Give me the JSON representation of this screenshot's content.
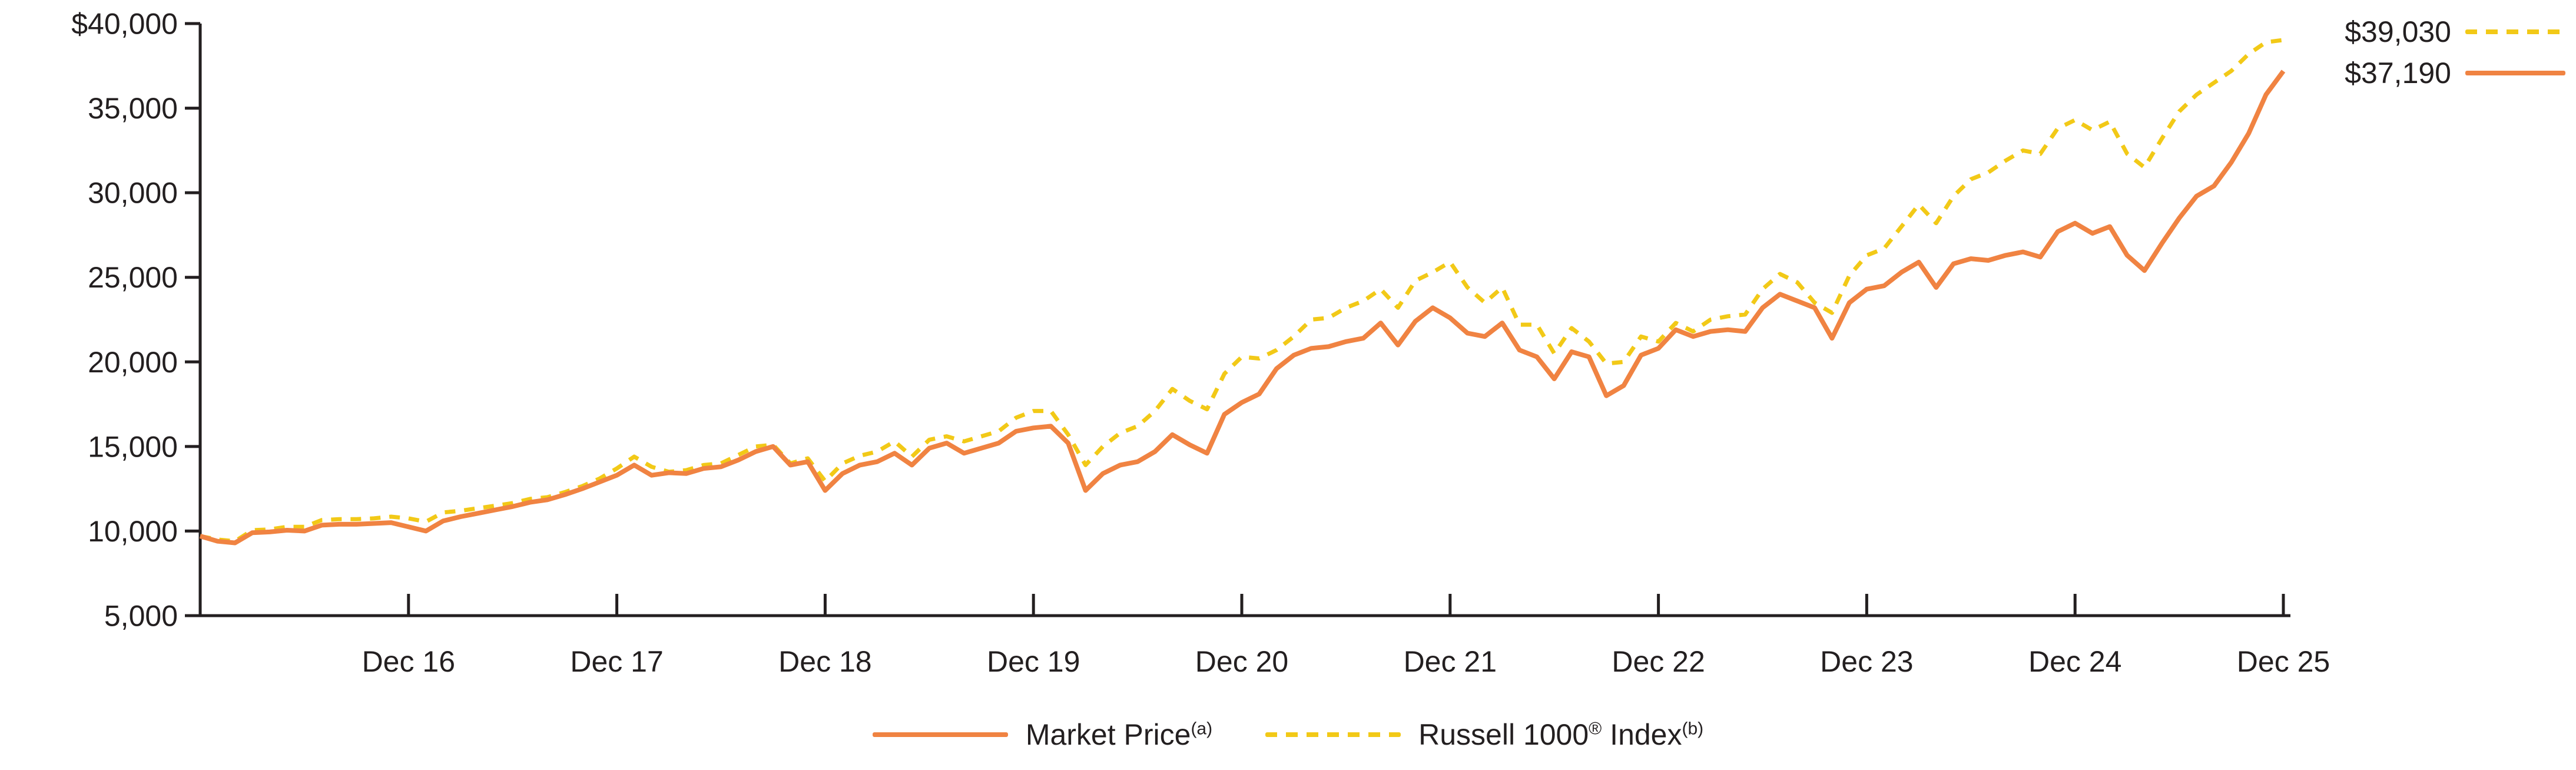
{
  "chart": {
    "y_axis": {
      "tick_labels": [
        "$40,000",
        "35,000",
        "30,000",
        "25,000",
        "20,000",
        "15,000",
        "10,000",
        "5,000"
      ],
      "tick_values": [
        40000,
        35000,
        30000,
        25000,
        20000,
        15000,
        10000,
        5000
      ]
    },
    "x_axis": {
      "tick_labels": [
        "Dec 16",
        "Dec 17",
        "Dec 18",
        "Dec 19",
        "Dec 20",
        "Dec 21",
        "Dec 22",
        "Dec 23",
        "Dec 24",
        "Dec 25"
      ]
    },
    "end_labels": [
      {
        "value": "$39,030",
        "series": "Russell 1000 Index"
      },
      {
        "value": "$37,190",
        "series": "Market Price"
      }
    ],
    "legend": {
      "items": [
        {
          "label": "Market Price",
          "sup": "(a)",
          "style": "solid",
          "color": "#F08342"
        },
        {
          "label": "Russell 1000",
          "sup_reg": "®",
          "label2": " Index",
          "sup": "(b)",
          "style": "dashed",
          "color": "#F2C917"
        }
      ]
    },
    "colors": {
      "market_price": "#F08342",
      "russell_index": "#F2C917",
      "axis": "#231f20"
    }
  },
  "chart_data": {
    "type": "line",
    "title": "",
    "xlabel": "",
    "ylabel": "",
    "ylim": [
      5000,
      40000
    ],
    "grid": false,
    "legend_position": "bottom-center",
    "x_tick_labels": [
      "Dec 16",
      "Dec 17",
      "Dec 18",
      "Dec 19",
      "Dec 20",
      "Dec 21",
      "Dec 22",
      "Dec 23",
      "Dec 24",
      "Dec 25"
    ],
    "x_note": "monthly points, estimated, from Dec 2015 (unlabeled start at axis) through Dec 2025; ticks fall every 12th point",
    "series": [
      {
        "name": "Market Price (a)",
        "color": "#F08342",
        "line_style": "solid",
        "final_value_label": "$37,190",
        "values": [
          9700,
          9400,
          9300,
          9900,
          9950,
          10050,
          10000,
          10350,
          10400,
          10400,
          10450,
          10500,
          10250,
          10000,
          10600,
          10850,
          11050,
          11250,
          11450,
          11700,
          11850,
          12150,
          12500,
          12900,
          13300,
          13900,
          13300,
          13450,
          13400,
          13700,
          13800,
          14200,
          14700,
          15000,
          13900,
          14100,
          12400,
          13400,
          13900,
          14100,
          14600,
          13900,
          14900,
          15200,
          14600,
          14900,
          15200,
          15900,
          16100,
          16200,
          15200,
          12400,
          13400,
          13900,
          14100,
          14700,
          15700,
          15100,
          14600,
          16900,
          17600,
          18100,
          19600,
          20400,
          20800,
          20900,
          21200,
          21400,
          22300,
          21000,
          22400,
          23200,
          22600,
          21700,
          21500,
          22300,
          20700,
          20300,
          19000,
          20600,
          20300,
          18000,
          18600,
          20400,
          20800,
          21900,
          21500,
          21800,
          21900,
          21800,
          23200,
          24000,
          23600,
          23200,
          21400,
          23500,
          24300,
          24500,
          25300,
          25900,
          24400,
          25800,
          26100,
          26000,
          26300,
          26500,
          26200,
          27700,
          28200,
          27600,
          28000,
          26300,
          25400,
          27000,
          28500,
          29800,
          30400,
          31800,
          33500,
          35800,
          37190
        ]
      },
      {
        "name": "Russell 1000® Index (b)",
        "color": "#F2C917",
        "line_style": "dashed",
        "final_value_label": "$39,030",
        "values": [
          9700,
          9500,
          9400,
          10050,
          10100,
          10250,
          10250,
          10650,
          10700,
          10700,
          10750,
          10850,
          10750,
          10550,
          11100,
          11200,
          11350,
          11500,
          11650,
          11900,
          12000,
          12300,
          12650,
          13100,
          13700,
          14400,
          13800,
          13500,
          13600,
          13900,
          14000,
          14500,
          15000,
          15100,
          14000,
          14300,
          12950,
          14000,
          14450,
          14700,
          15300,
          14400,
          15400,
          15600,
          15300,
          15600,
          15900,
          16700,
          17100,
          17100,
          15700,
          13900,
          15000,
          15800,
          16200,
          17100,
          18400,
          17700,
          17200,
          19300,
          20300,
          20200,
          20700,
          21500,
          22500,
          22600,
          23200,
          23600,
          24300,
          23200,
          24800,
          25300,
          25900,
          24400,
          23500,
          24400,
          22200,
          22200,
          20500,
          22000,
          21200,
          19900,
          20000,
          21500,
          21200,
          22300,
          21800,
          22500,
          22700,
          22800,
          24300,
          25200,
          24700,
          23500,
          22900,
          25100,
          26300,
          26700,
          28000,
          29300,
          28200,
          29800,
          30800,
          31200,
          31900,
          32500,
          32300,
          33800,
          34300,
          33700,
          34200,
          32300,
          31500,
          33200,
          34800,
          35800,
          36500,
          37200,
          38200,
          38900,
          39030
        ]
      }
    ]
  }
}
